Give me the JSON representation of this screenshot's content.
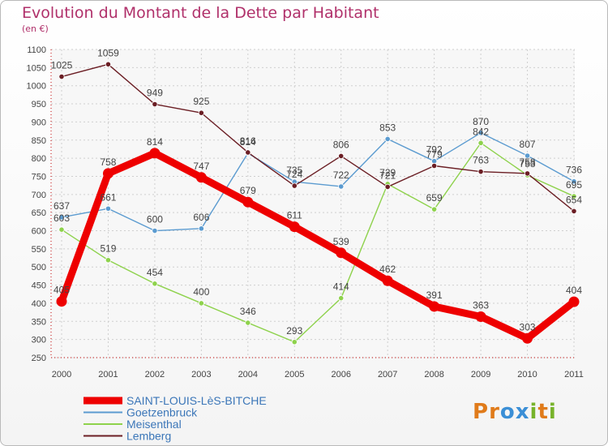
{
  "title": "Evolution du Montant de la Dette par Habitant",
  "unit": "(en €)",
  "logo": {
    "text": "Proxiti",
    "letters": [
      {
        "ch": "P",
        "color": "#e07b1a"
      },
      {
        "ch": "r",
        "color": "#e07b1a"
      },
      {
        "ch": "o",
        "color": "#3b8fd6"
      },
      {
        "ch": "x",
        "color": "#3b8fd6"
      },
      {
        "ch": "i",
        "color": "#77b32a"
      },
      {
        "ch": "t",
        "color": "#e07b1a"
      },
      {
        "ch": "i",
        "color": "#77b32a"
      }
    ]
  },
  "chart_data": {
    "type": "line",
    "x": [
      "2000",
      "2001",
      "2002",
      "2003",
      "2004",
      "2005",
      "2006",
      "2007",
      "2008",
      "2009",
      "2010",
      "2011"
    ],
    "ylim": [
      250,
      1100
    ],
    "yticks": [
      250,
      300,
      350,
      400,
      450,
      500,
      550,
      600,
      650,
      700,
      750,
      800,
      850,
      900,
      950,
      1000,
      1050,
      1100
    ],
    "grid": true,
    "legend_position": "bottom-left",
    "series": [
      {
        "name": "SAINT-LOUIS-LèS-BITCHE",
        "color": "#ee0000",
        "values": [
          405,
          758,
          814,
          747,
          679,
          611,
          539,
          462,
          391,
          363,
          303,
          404
        ]
      },
      {
        "name": "Goetzenbruck",
        "color": "#5b9bd0",
        "values": [
          637,
          661,
          600,
          606,
          814,
          735,
          722,
          853,
          792,
          870,
          807,
          736
        ]
      },
      {
        "name": "Meisenthal",
        "color": "#8ed24c",
        "values": [
          603,
          519,
          454,
          400,
          346,
          293,
          414,
          729,
          659,
          842,
          753,
          695
        ]
      },
      {
        "name": "Lemberg",
        "color": "#6b1e24",
        "values": [
          1025,
          1059,
          949,
          925,
          816,
          724,
          806,
          721,
          779,
          763,
          758,
          654
        ]
      }
    ]
  }
}
